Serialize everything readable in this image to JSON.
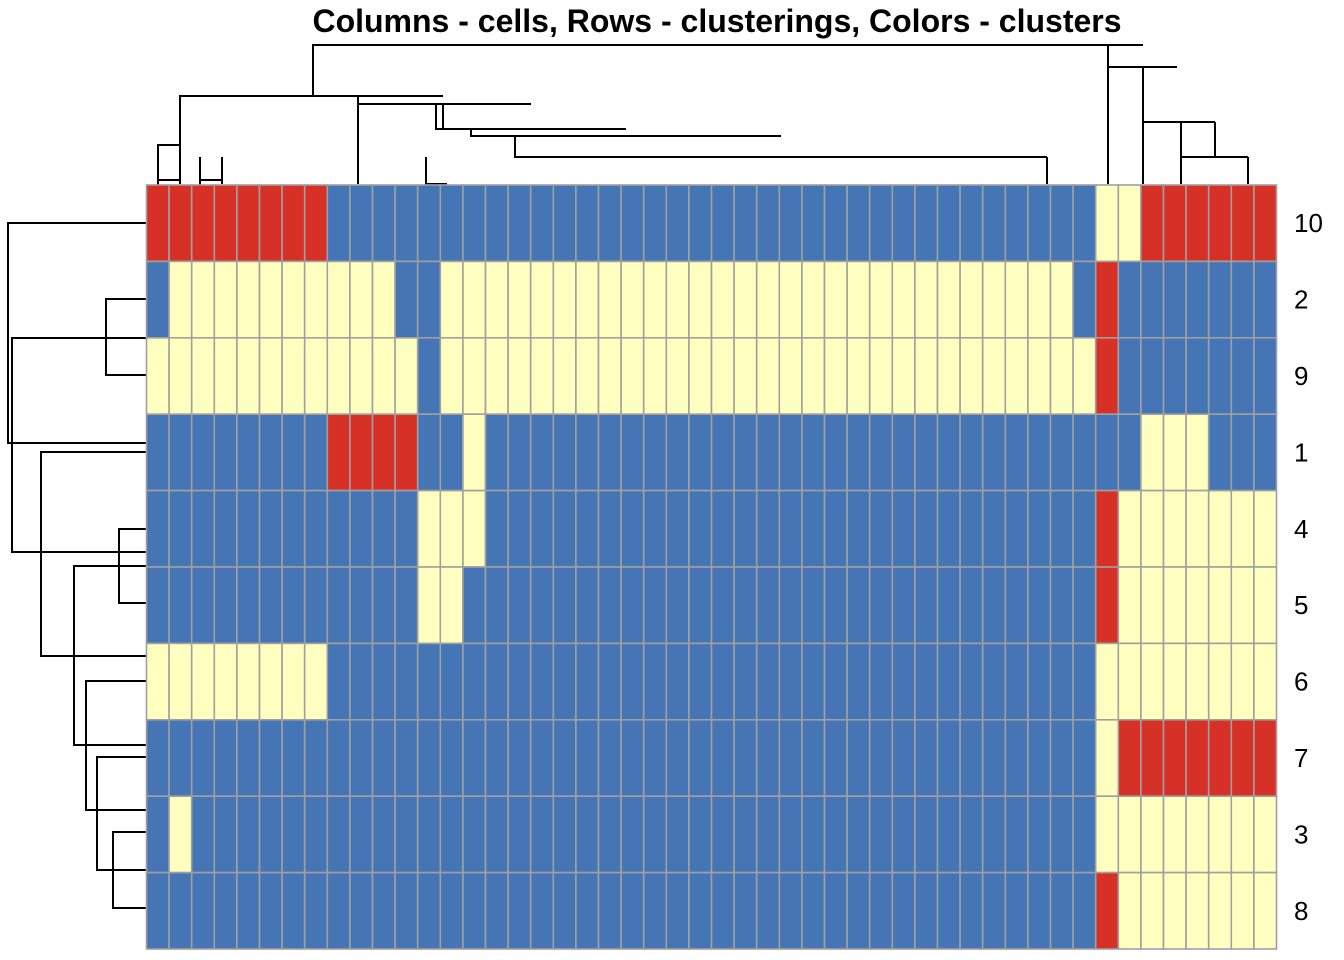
{
  "chart_data": {
    "type": "heatmap",
    "title": "Columns - cells, Rows - clusterings, Colors - clusters",
    "row_labels": [
      "10",
      "2",
      "9",
      "1",
      "4",
      "5",
      "6",
      "7",
      "3",
      "8"
    ],
    "n_columns": 50,
    "palette": {
      "blue": "#4575b4",
      "cream": "#ffffbf",
      "red": "#d73027",
      "grid": "#a0a0a0"
    },
    "matrix": [
      "RRRRRRRRBBBBBBBBBBBBBBBBBBBBBBBBBBBBBBBBBBCCRRRRRR",
      "BCCCCCCCCCCBBCCCCCCCCCCCCCCCCCCCCCCCCCCCCBBRRBBBBBBB",
      "CCCCCCCCCCCCBCCCCCCCCCCCCCCCCCCCCCCCCCCCCCCRRBBBBBBB",
      "BBBBBBBBRRRRBBCBBBBBBBBBBBBBBBBBBBBBBBBBBBBBBBCCCBBB",
      "BBBBBBBBBBBBCCCBBBBBBBBBBBBBBBBBBBBBBBBBBBCCRCCCCCCC",
      "BBBBBBBBBBBBCCBBBBBBBBBBBBBBBBBBBBBBBBBBBBBBRCCCCCCC",
      "CCCCCCCCBBBBBBBBBBBBBBBBBBBBBBBBBBBBBBBBBBRRCCCCCCCC",
      "BBBBBBBBBBBBBBBBBBBBBBBBBBBBBBBBBBBBBBBBBBRRCRRRRRRR",
      "BCBBBBBBBBBBBBBBBBBBBBBBBBBBBBBBBBBBBBBBBBRRCCCCCCCC",
      "BBBBBBBBBBBBBBBBBBBBBBBBBBBBBBBBBBBBBBBBBBCCRCCCCCCC"
    ],
    "legend": "none",
    "grid": true
  }
}
